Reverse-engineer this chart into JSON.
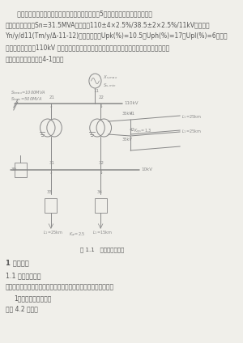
{
  "bg_color": "#f0efea",
  "text_color": "#555555",
  "diagram_color": "#888888",
  "para1": "      某变电所的主接线如图所示。已知两台变压器均为5绕组，油浸式，强迫风冷、分",
  "para1b": "级绝缘。基参数：Sn=31.5MVA，电压：110±4×2.5%/38.5±2×2.5%/11kV，接线：",
  "para2": "Yn/y/d11(Tm/y/Δ-11-12)，短路电压：Upk(%)=10.5；Uph(%)=17；Upl(%)=6，两台",
  "para2b": "变压器同时运行，110kV 侧的中性主只有一组接地；皆只有一组运行，则运行变压器中性主直",
  "para2c": "接接地。其余参数如图4-1所示。",
  "fig_caption": "图 1.1   变变电所主接线",
  "section1": "1 设计计算",
  "section1_1": "1.1 线路电流计算",
  "section1_desc": "用标幺值计算短路电流参数，确定线路计算点，计算短路电流值。",
  "subsection1": "1、画出线路等值电路",
  "subsection1_desc": "如图 4.2 所示。"
}
